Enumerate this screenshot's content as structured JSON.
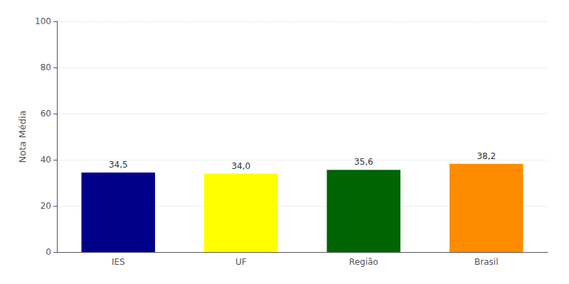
{
  "chart_data": {
    "type": "bar",
    "categories": [
      "IES",
      "UF",
      "Região",
      "Brasil"
    ],
    "values": [
      34.5,
      34.0,
      35.6,
      38.2
    ],
    "value_labels": [
      "34,5",
      "34,0",
      "35,6",
      "38,2"
    ],
    "data_labels": true,
    "colors": [
      "#00008B",
      "#FFFF00",
      "#006400",
      "#FF8C00"
    ],
    "ylabel": "Nota Média",
    "ylim": [
      0,
      100
    ],
    "yticks": [
      0,
      20,
      40,
      60,
      80,
      100
    ],
    "grid": true
  }
}
